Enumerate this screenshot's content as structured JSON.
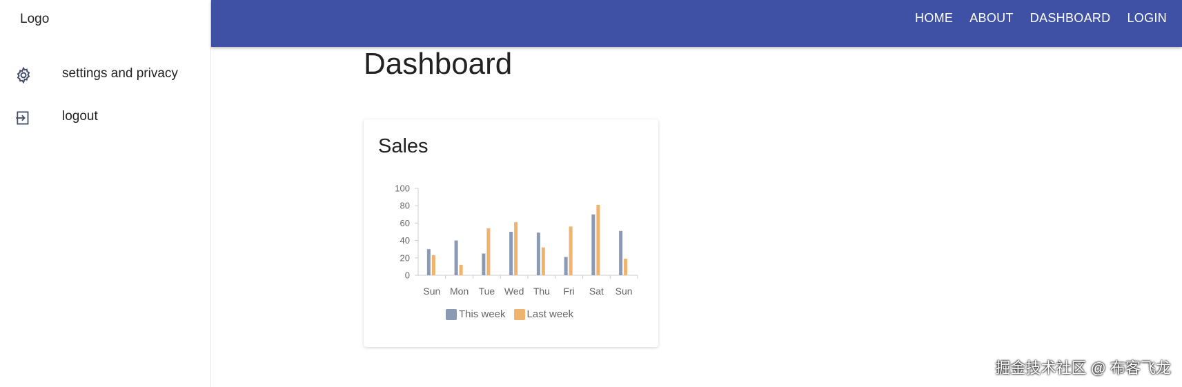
{
  "sidebar": {
    "logo": "Logo",
    "items": [
      {
        "label": "settings and privacy",
        "icon": "gear-icon"
      },
      {
        "label": "logout",
        "icon": "logout-icon"
      }
    ]
  },
  "header": {
    "nav": [
      "HOME",
      "ABOUT",
      "DASHBOARD",
      "LOGIN"
    ],
    "color": "#3f51a5"
  },
  "main": {
    "title": "Dashboard",
    "card_title": "Sales"
  },
  "chart_data": {
    "type": "bar",
    "categories": [
      "Sun",
      "Mon",
      "Tue",
      "Wed",
      "Thu",
      "Fri",
      "Sat",
      "Sun"
    ],
    "series": [
      {
        "name": "This week",
        "values": [
          30,
          40,
          25,
          50,
          49,
          21,
          70,
          51
        ],
        "color": "#8a9ab5"
      },
      {
        "name": "Last week",
        "values": [
          23,
          12,
          54,
          61,
          32,
          56,
          81,
          19
        ],
        "color": "#f0b36d"
      }
    ],
    "yticks": [
      "0",
      "20",
      "40",
      "60",
      "80",
      "100"
    ],
    "ylim": [
      0,
      100
    ],
    "legend_position": "bottom"
  },
  "watermark": "掘金技术社区 @ 布客飞龙"
}
